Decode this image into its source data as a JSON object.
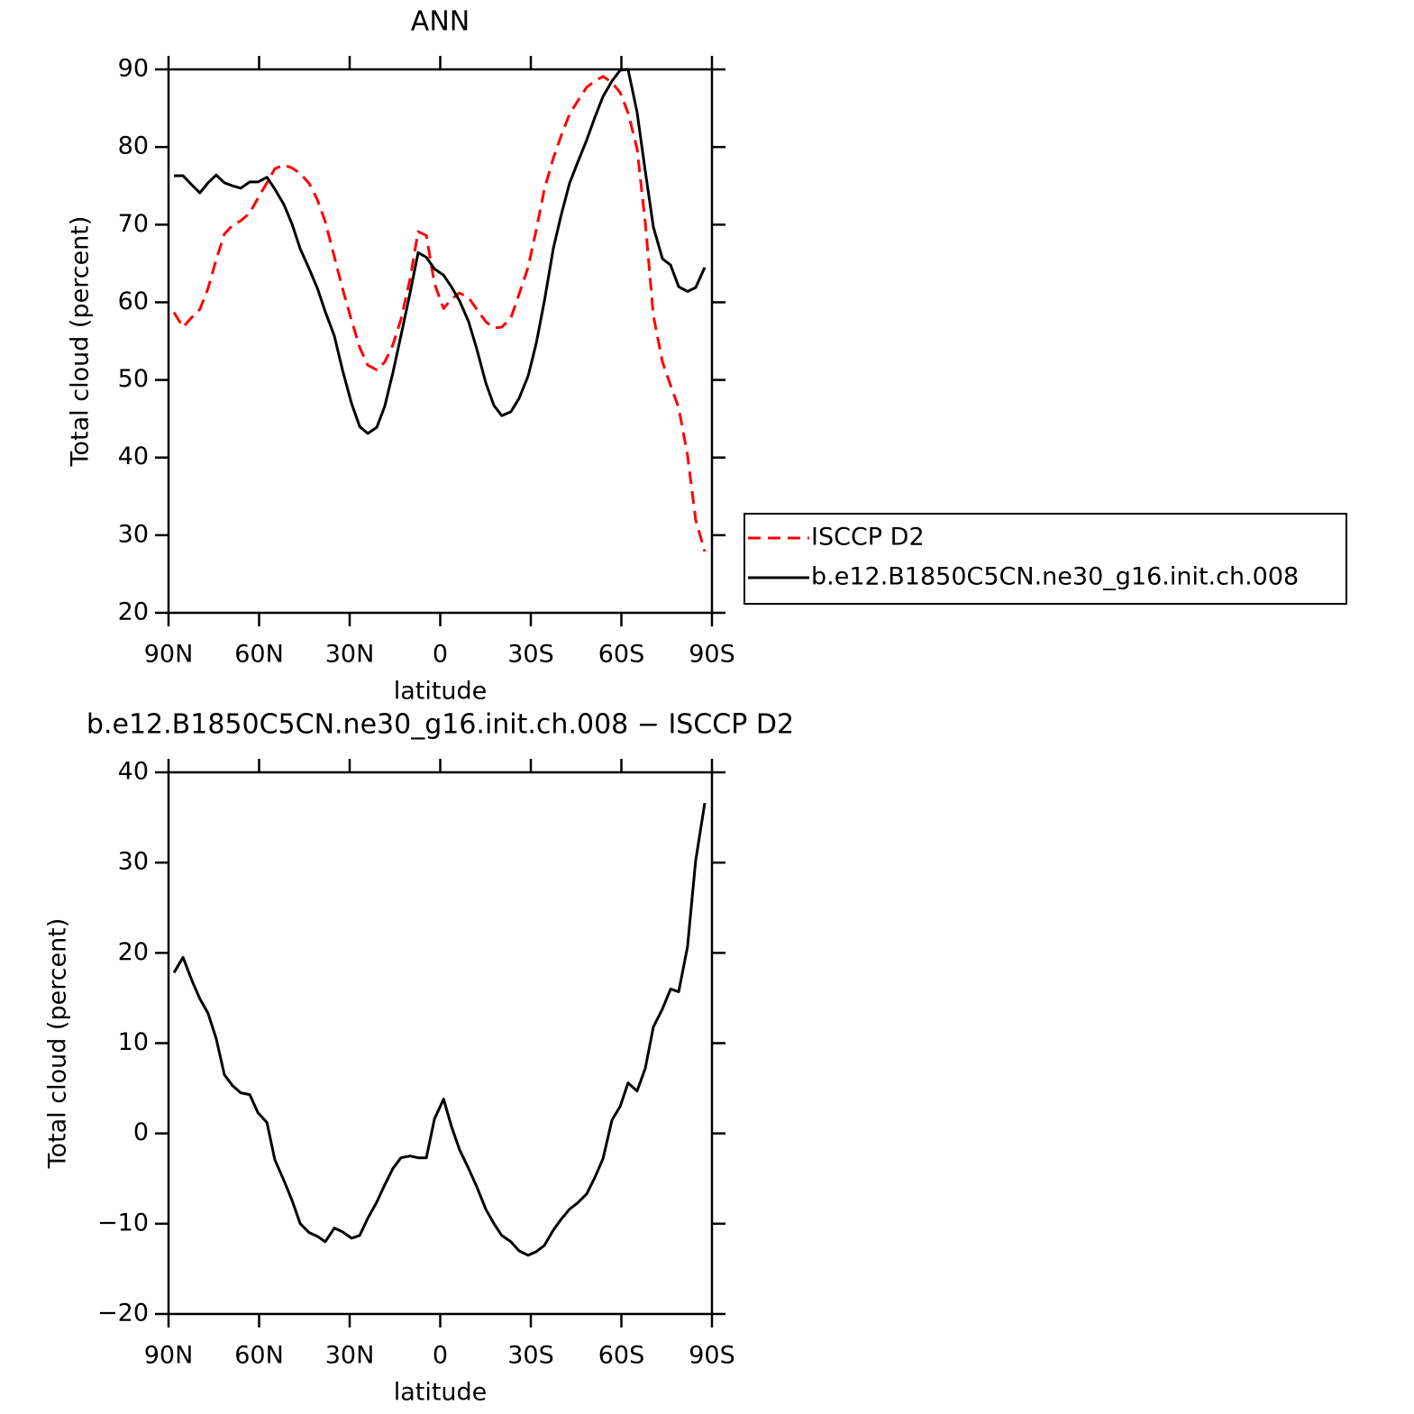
{
  "chart_data": [
    {
      "type": "line",
      "title": "ANN",
      "x_label": "latitude",
      "y_label": "Total cloud (percent)",
      "x": [
        88.2,
        85.2,
        82.2,
        79.6,
        76.9,
        74.2,
        71.5,
        68.8,
        66.1,
        63.1,
        60.4,
        57.4,
        54.8,
        51.8,
        49.1,
        46.4,
        43.4,
        40.7,
        38.1,
        35.1,
        32.4,
        29.4,
        26.7,
        24.0,
        21.0,
        18.4,
        15.7,
        13.0,
        10.0,
        7.3,
        4.6,
        1.9,
        -1.1,
        -3.7,
        -6.4,
        -9.4,
        -12.1,
        -15.1,
        -17.8,
        -20.4,
        -23.4,
        -26.1,
        -29.1,
        -31.8,
        -34.5,
        -37.5,
        -40.1,
        -42.8,
        -45.5,
        -48.5,
        -51.2,
        -53.9,
        -56.9,
        -59.6,
        -62.2,
        -65.2,
        -67.9,
        -70.6,
        -73.6,
        -76.3,
        -79.0,
        -81.9,
        -84.6,
        -87.6
      ],
      "series": [
        {
          "name": "ISCCP D2",
          "color": "#ff0000",
          "style": "dashed",
          "values": [
            58.7,
            56.8,
            58.1,
            59.1,
            61.8,
            65.5,
            68.8,
            69.9,
            70.5,
            71.5,
            73.4,
            75.4,
            77.2,
            77.7,
            77.3,
            76.6,
            75.3,
            73.2,
            70.4,
            65.9,
            61.8,
            57.7,
            54.2,
            51.9,
            51.3,
            52.3,
            54.5,
            57.8,
            63.0,
            69.1,
            68.6,
            62.4,
            59.2,
            60.4,
            61.2,
            60.6,
            59.1,
            57.5,
            56.7,
            56.8,
            58.0,
            61.0,
            64.5,
            69.3,
            74.6,
            78.6,
            81.5,
            84.2,
            85.9,
            87.7,
            88.5,
            89.1,
            88.3,
            87.0,
            84.4,
            79.8,
            70.3,
            58.3,
            52.3,
            49.3,
            46.4,
            40.3,
            32.0,
            27.9
          ]
        },
        {
          "name": "b.e12.B1850C5CN.ne30_g16.init.ch.008",
          "color": "#000000",
          "style": "solid",
          "values": [
            76.3,
            76.3,
            75.1,
            74.1,
            75.4,
            76.4,
            75.4,
            75.0,
            74.7,
            75.5,
            75.5,
            76.1,
            74.6,
            72.6,
            70.1,
            66.9,
            64.3,
            61.8,
            58.8,
            55.7,
            51.3,
            47.0,
            44.0,
            43.1,
            43.9,
            46.6,
            50.9,
            55.7,
            61.2,
            66.4,
            65.8,
            64.3,
            63.5,
            62.0,
            60.2,
            57.5,
            54.0,
            49.6,
            46.7,
            45.4,
            45.9,
            47.6,
            50.5,
            54.7,
            60.2,
            67.0,
            71.3,
            75.3,
            78.0,
            80.9,
            83.8,
            86.5,
            88.5,
            89.9,
            90.0,
            84.5,
            76.9,
            69.7,
            65.6,
            64.8,
            62.0,
            61.4,
            61.9,
            64.5
          ]
        }
      ],
      "xlim": [
        90,
        -90
      ],
      "xticks": [
        {
          "value": 90,
          "label": "90N"
        },
        {
          "value": 60,
          "label": "60N"
        },
        {
          "value": 30,
          "label": "30N"
        },
        0,
        {
          "value": -30,
          "label": "30S"
        },
        {
          "value": -60,
          "label": "60S"
        },
        {
          "value": -90,
          "label": "90S"
        }
      ],
      "ylim": [
        20,
        90
      ],
      "yticks": [
        20,
        30,
        40,
        50,
        60,
        70,
        80,
        90
      ],
      "legend": "right"
    },
    {
      "type": "line",
      "title": "b.e12.B1850C5CN.ne30_g16.init.ch.008 − ISCCP D2",
      "x_label": "latitude",
      "y_label": "Total cloud (percent)",
      "x": [
        88.2,
        85.2,
        82.2,
        79.6,
        76.9,
        74.2,
        71.5,
        68.8,
        66.1,
        63.1,
        60.4,
        57.4,
        54.8,
        51.8,
        49.1,
        46.4,
        43.4,
        40.7,
        38.1,
        35.1,
        32.4,
        29.4,
        26.7,
        24.0,
        21.0,
        18.4,
        15.7,
        13.0,
        10.0,
        7.3,
        4.6,
        1.9,
        -1.1,
        -3.7,
        -6.4,
        -9.4,
        -12.1,
        -15.1,
        -17.8,
        -20.4,
        -23.4,
        -26.1,
        -29.1,
        -31.8,
        -34.5,
        -37.5,
        -40.1,
        -42.8,
        -45.5,
        -48.5,
        -51.2,
        -53.9,
        -56.9,
        -59.6,
        -62.2,
        -65.2,
        -67.9,
        -70.6,
        -73.6,
        -76.3,
        -79.0,
        -81.9,
        -84.6,
        -87.6
      ],
      "series": [
        {
          "color": "#000000",
          "style": "solid",
          "values": [
            17.8,
            19.5,
            16.9,
            14.9,
            13.3,
            10.5,
            6.5,
            5.3,
            4.5,
            4.3,
            2.3,
            1.2,
            -2.9,
            -5.2,
            -7.4,
            -10.0,
            -11.0,
            -11.4,
            -12.0,
            -10.5,
            -10.9,
            -11.6,
            -11.3,
            -9.4,
            -7.6,
            -5.7,
            -3.9,
            -2.7,
            -2.5,
            -2.7,
            -2.7,
            1.6,
            3.8,
            0.8,
            -1.8,
            -3.9,
            -5.9,
            -8.4,
            -10.0,
            -11.3,
            -12.0,
            -13.0,
            -13.5,
            -13.1,
            -12.4,
            -10.7,
            -9.5,
            -8.4,
            -7.7,
            -6.7,
            -4.9,
            -2.8,
            1.5,
            3.0,
            5.6,
            4.7,
            7.2,
            11.8,
            13.8,
            16.0,
            15.7,
            20.7,
            30.2,
            36.6
          ]
        }
      ],
      "xlim": [
        90,
        -90
      ],
      "xticks": [
        {
          "value": 90,
          "label": "90N"
        },
        {
          "value": 60,
          "label": "60N"
        },
        {
          "value": 30,
          "label": "30N"
        },
        0,
        {
          "value": -30,
          "label": "30S"
        },
        {
          "value": -60,
          "label": "60S"
        },
        {
          "value": -90,
          "label": "90S"
        }
      ],
      "ylim": [
        -20,
        40
      ],
      "yticks": [
        {
          "value": -20,
          "label": "−20"
        },
        {
          "value": -10,
          "label": "−10"
        },
        0,
        10,
        20,
        30,
        40
      ]
    }
  ]
}
